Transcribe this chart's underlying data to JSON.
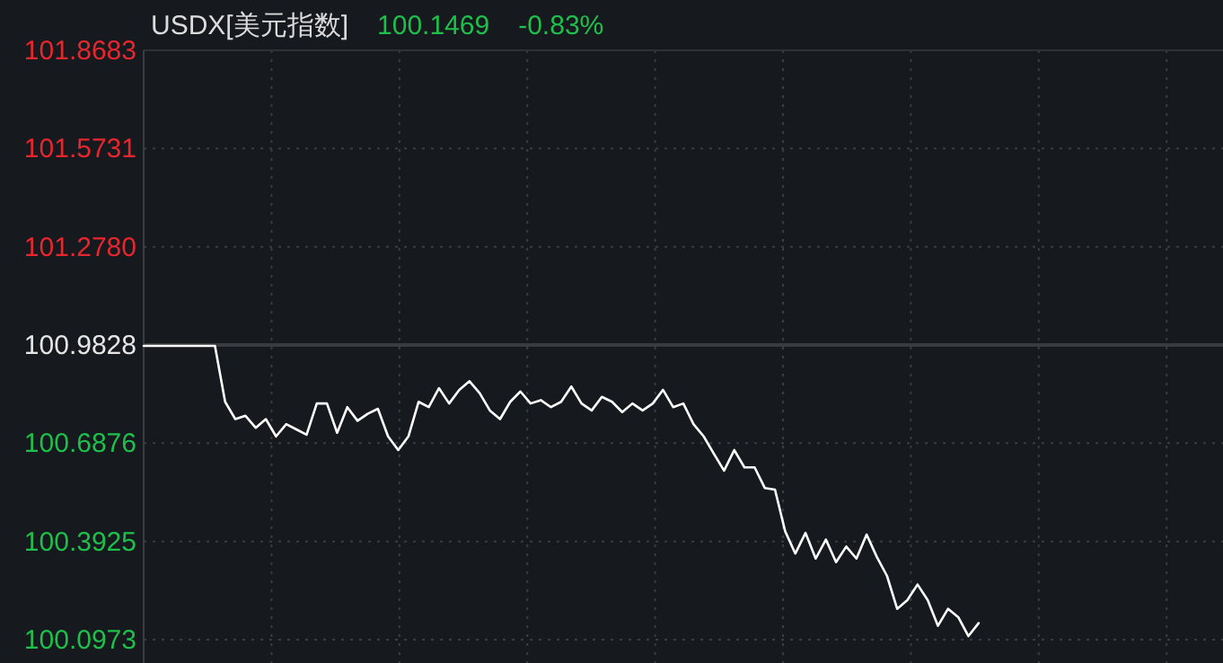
{
  "chart_data": {
    "type": "line",
    "title": "USDX[美元指数]",
    "annotations": [
      "100.1469",
      "-0.83%"
    ],
    "categories": [
      null,
      null,
      null,
      null,
      null,
      null,
      null,
      null,
      null,
      null,
      null,
      null,
      null,
      null,
      null,
      null,
      null,
      null,
      null,
      null,
      null,
      null,
      null,
      null,
      null,
      null,
      null,
      null,
      null,
      null,
      null,
      null,
      null,
      null,
      null,
      null,
      null,
      null,
      null,
      null,
      null,
      null,
      null,
      null,
      null,
      null,
      null,
      null,
      null,
      null,
      null,
      null,
      null,
      null,
      null,
      null,
      null,
      null,
      null,
      null,
      null,
      null,
      null,
      null,
      null,
      null,
      null,
      null,
      null,
      null,
      null,
      null,
      null,
      null,
      null,
      null,
      null,
      null,
      null,
      null,
      null,
      null,
      null,
      null,
      null,
      null,
      null,
      null,
      null,
      null,
      null,
      null,
      null,
      null,
      null,
      null,
      null,
      null,
      null,
      null,
      null,
      null,
      null,
      null,
      null,
      null,
      null
    ],
    "series": [
      {
        "color": "#ffffff",
        "values": [
          100.98,
          100.98,
          100.98,
          100.98,
          100.98,
          100.98,
          100.98,
          100.98,
          100.812,
          100.76,
          100.77,
          100.734,
          100.76,
          100.708,
          100.745,
          100.729,
          100.713,
          100.807,
          100.807,
          100.719,
          100.796,
          100.755,
          100.776,
          100.791,
          100.708,
          100.667,
          100.708,
          100.812,
          100.796,
          100.853,
          100.807,
          100.848,
          100.874,
          100.838,
          100.786,
          100.76,
          100.812,
          100.843,
          100.807,
          100.817,
          100.796,
          100.812,
          100.858,
          100.807,
          100.786,
          100.827,
          100.812,
          100.781,
          100.807,
          100.786,
          100.807,
          100.848,
          100.796,
          100.807,
          100.745,
          100.708,
          100.656,
          100.605,
          100.667,
          100.615,
          100.615,
          100.553,
          100.548,
          100.423,
          100.356,
          100.418,
          100.341,
          100.398,
          100.33,
          100.377,
          100.341,
          100.413,
          100.346,
          100.289,
          100.19,
          100.216,
          100.263,
          100.216,
          100.139,
          100.19,
          100.165,
          100.108,
          100.147,
          null,
          null,
          null,
          null,
          null,
          null,
          null,
          null,
          null,
          null,
          null,
          null,
          null,
          null,
          null,
          null,
          null,
          null,
          null,
          null,
          null,
          null,
          null,
          null
        ]
      }
    ],
    "ylim": [
      100.0973,
      101.8683
    ],
    "yticks": [
      100.0973,
      100.3925,
      100.6876,
      100.9828,
      {
        "value": 101.278,
        "label": "101.2780"
      },
      101.5731,
      101.8683
    ],
    "ref_lines": [
      {
        "axis": "y",
        "value": 100.9828,
        "color": "#3a3b3e"
      }
    ],
    "grid": true,
    "tick_labels": "y",
    "marker": "none"
  }
}
